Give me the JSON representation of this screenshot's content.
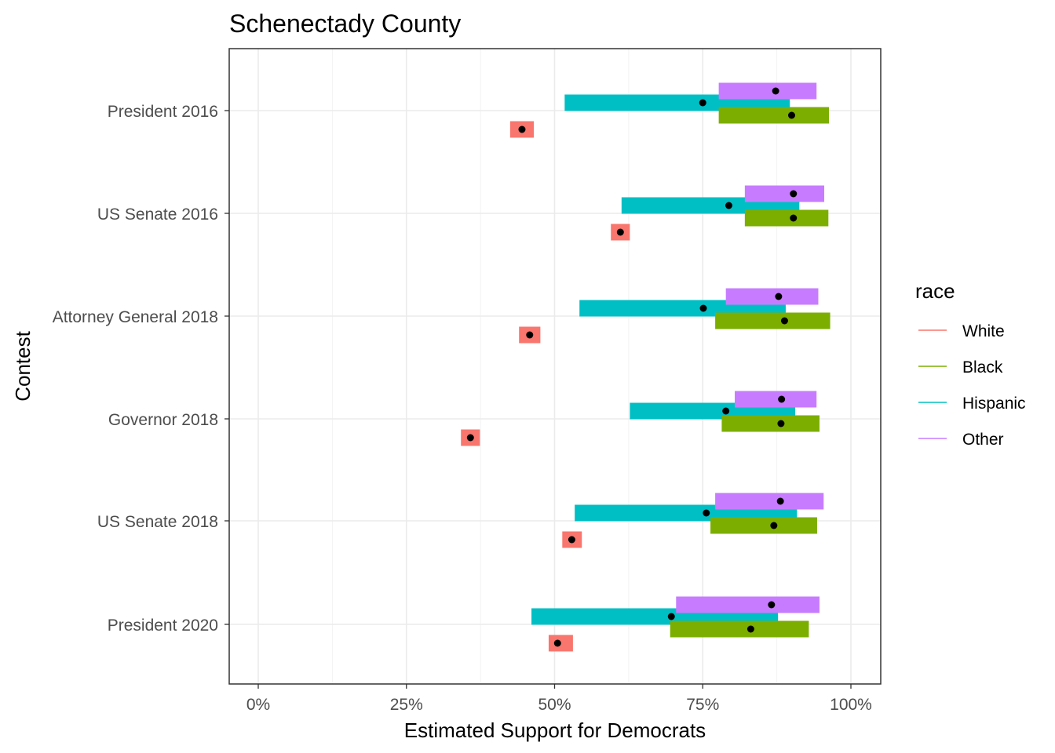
{
  "chart_data": {
    "type": "interval",
    "title": "Schenectady County",
    "xlabel": "Estimated Support for Democrats",
    "ylabel": "Contest",
    "xlim": [
      -0.1,
      2.1
    ],
    "x_ticks": [
      0,
      0.25,
      0.5,
      0.75,
      1.0
    ],
    "x_tick_labels": [
      "0%",
      "25%",
      "50%",
      "75%",
      "100%"
    ],
    "categories": [
      "President 2016",
      "US Senate 2016",
      "Attorney General 2018",
      "Governor 2018",
      "US Senate 2018",
      "President 2020"
    ],
    "grid": true,
    "legend": {
      "title": "race",
      "position": "right"
    },
    "series": [
      {
        "name": "White",
        "color": "#F8766D",
        "estimates": [
          0.445,
          0.611,
          0.458,
          0.358,
          0.529,
          0.505
        ],
        "lower": [
          0.425,
          0.595,
          0.44,
          0.342,
          0.513,
          0.49
        ],
        "upper": [
          0.465,
          0.627,
          0.476,
          0.374,
          0.546,
          0.531
        ]
      },
      {
        "name": "Black",
        "color": "#7CAE00",
        "estimates": [
          0.9,
          0.903,
          0.888,
          0.882,
          0.87,
          0.831
        ],
        "lower": [
          0.777,
          0.821,
          0.771,
          0.782,
          0.763,
          0.695
        ],
        "upper": [
          0.963,
          0.962,
          0.965,
          0.947,
          0.943,
          0.929
        ]
      },
      {
        "name": "Hispanic",
        "color": "#00BFC4",
        "estimates": [
          0.75,
          0.794,
          0.751,
          0.789,
          0.756,
          0.697
        ],
        "lower": [
          0.517,
          0.613,
          0.542,
          0.627,
          0.534,
          0.461
        ],
        "upper": [
          0.897,
          0.913,
          0.89,
          0.906,
          0.909,
          0.877
        ]
      },
      {
        "name": "Other",
        "color": "#C77CFF",
        "estimates": [
          0.873,
          0.903,
          0.878,
          0.883,
          0.881,
          0.866
        ],
        "lower": [
          0.777,
          0.821,
          0.789,
          0.804,
          0.771,
          0.705
        ],
        "upper": [
          0.942,
          0.955,
          0.945,
          0.942,
          0.954,
          0.947
        ]
      }
    ]
  }
}
